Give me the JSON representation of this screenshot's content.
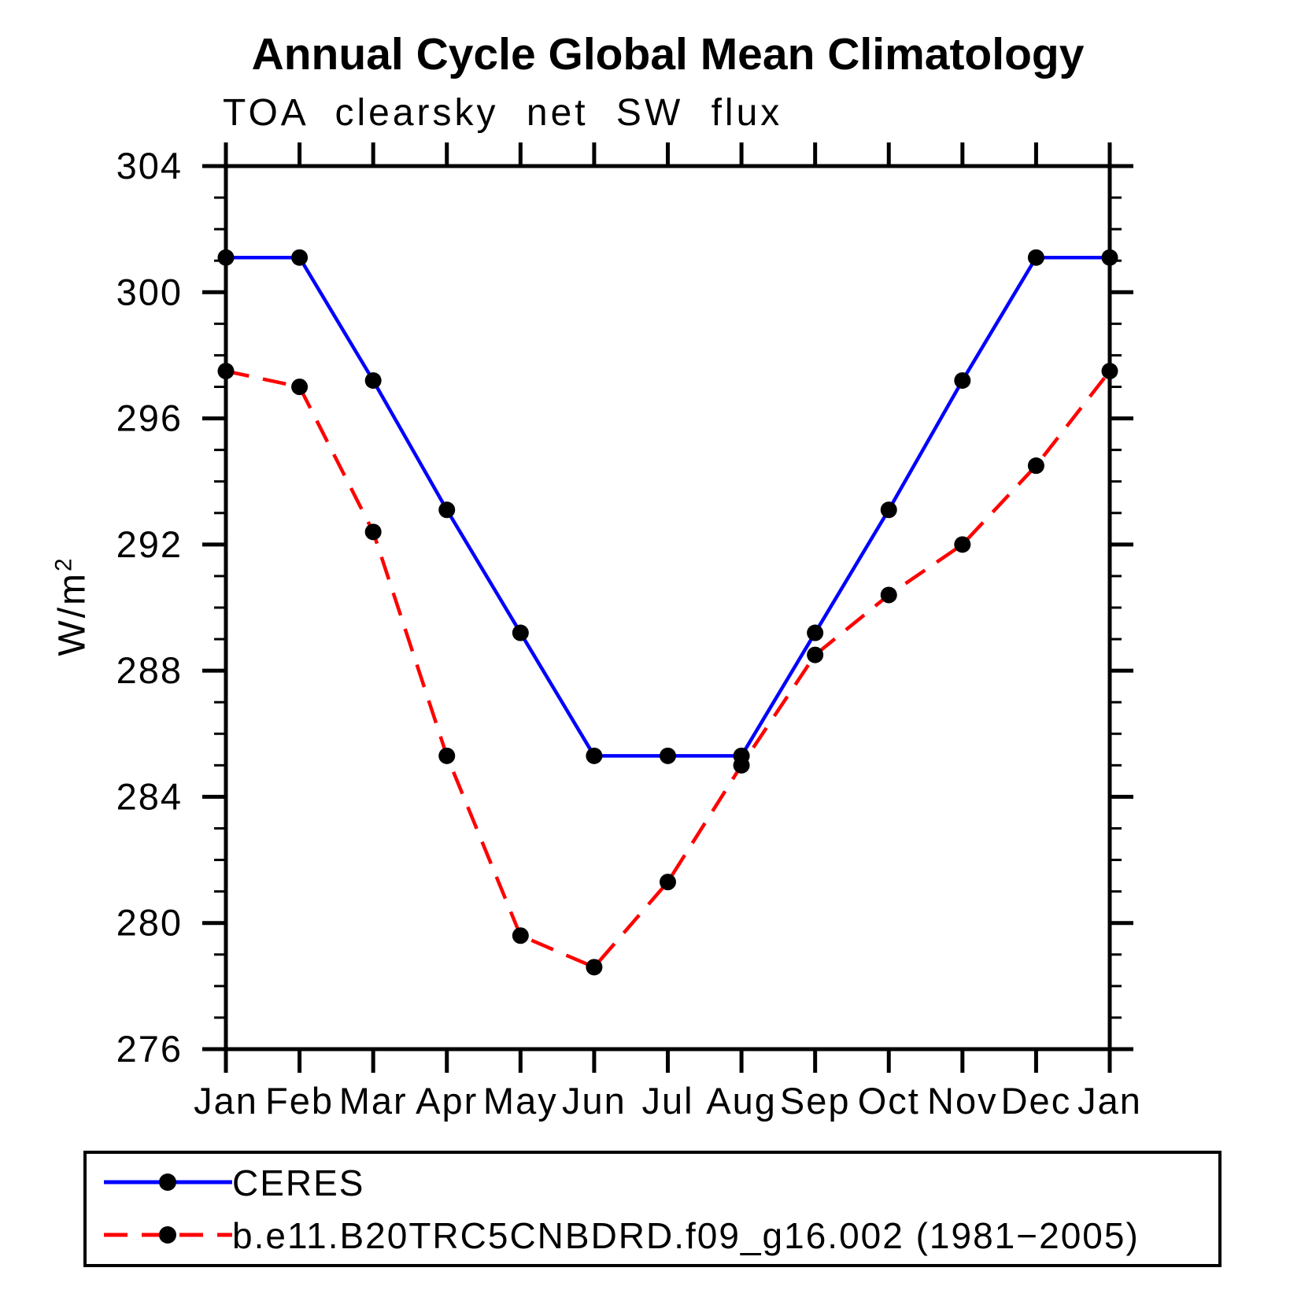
{
  "page": {
    "background": "#FFFFFF"
  },
  "chart_data": {
    "type": "line",
    "title": "Annual Cycle Global Mean Climatology",
    "subtitle": "TOA clearsky net SW flux",
    "ylabel": "W/m²",
    "ylabel_base": "W/m",
    "ylabel_exponent": "2",
    "x_tick_labels": [
      "Jan",
      "Feb",
      "Mar",
      "Apr",
      "May",
      "Jun",
      "Jul",
      "Aug",
      "Sep",
      "Oct",
      "Nov",
      "Dec",
      "Jan"
    ],
    "ylim": [
      276,
      304
    ],
    "y_major_ticks": [
      276,
      280,
      284,
      288,
      292,
      296,
      300,
      304
    ],
    "y_minor_step": 1,
    "grid": false,
    "axis_color": "#000000",
    "marker_color": "#000000",
    "legend_position": "bottom-box",
    "series": [
      {
        "name": "CERES",
        "color": "#0000FF",
        "line_style": "solid",
        "marker": "filled-black-circle",
        "values": [
          301.1,
          301.1,
          297.2,
          293.1,
          289.2,
          285.3,
          285.3,
          285.3,
          289.2,
          293.1,
          297.2,
          301.1,
          301.1
        ]
      },
      {
        "name": "b.e11.B20TRC5CNBDRD.f09_g16.002 (1981−2005)",
        "color": "#FF0000",
        "line_style": "dashed",
        "marker": "filled-black-circle",
        "values": [
          297.5,
          297.0,
          292.4,
          285.3,
          279.6,
          278.6,
          281.3,
          285.0,
          288.5,
          290.4,
          292.0,
          294.5,
          297.5
        ]
      }
    ]
  }
}
